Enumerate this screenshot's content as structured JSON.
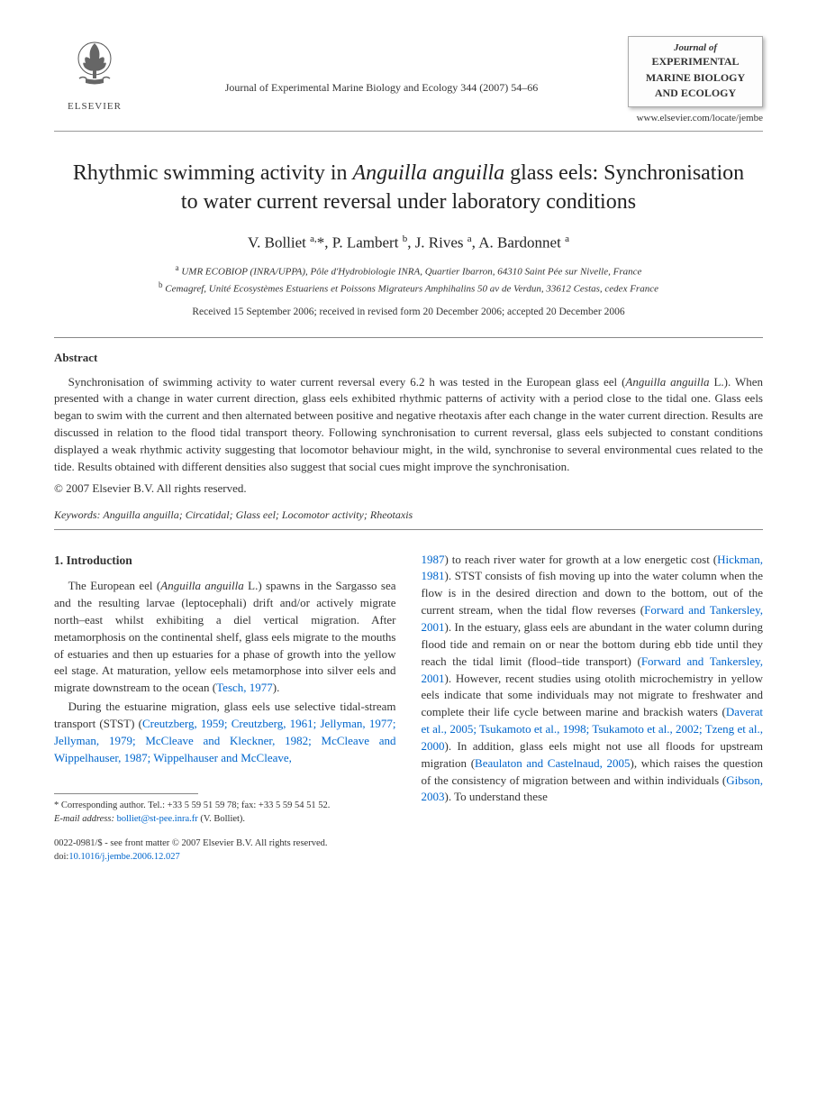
{
  "header": {
    "publisher": "ELSEVIER",
    "journal_ref": "Journal of Experimental Marine Biology and Ecology 344 (2007) 54–66",
    "journal_box": {
      "prefix": "Journal of",
      "line1": "EXPERIMENTAL",
      "line2": "MARINE BIOLOGY",
      "line3": "AND ECOLOGY"
    },
    "locate_url": "www.elsevier.com/locate/jembe"
  },
  "title": {
    "pre": "Rhythmic swimming activity in ",
    "italic": "Anguilla anguilla",
    "post": " glass eels: Synchronisation to water current reversal under laboratory conditions"
  },
  "authors_html": "V. Bolliet <sup>a,</sup>*, P. Lambert <sup>b</sup>, J. Rives <sup>a</sup>, A. Bardonnet <sup>a</sup>",
  "affiliations": {
    "a": "UMR ECOBIOP (INRA/UPPA), Pôle d'Hydrobiologie INRA, Quartier Ibarron, 64310 Saint Pée sur Nivelle, France",
    "b": "Cemagref, Unité Ecosystèmes Estuariens et Poissons Migrateurs Amphihalins 50 av de Verdun, 33612 Cestas, cedex France"
  },
  "dates": "Received 15 September 2006; received in revised form 20 December 2006; accepted 20 December 2006",
  "abstract": {
    "label": "Abstract",
    "body_pre": "Synchronisation of swimming activity to water current reversal every 6.2 h was tested in the European glass eel (",
    "body_italic": "Anguilla anguilla",
    "body_post": " L.). When presented with a change in water current direction, glass eels exhibited rhythmic patterns of activity with a period close to the tidal one. Glass eels began to swim with the current and then alternated between positive and negative rheotaxis after each change in the water current direction. Results are discussed in relation to the flood tidal transport theory. Following synchronisation to current reversal, glass eels subjected to constant conditions displayed a weak rhythmic activity suggesting that locomotor behaviour might, in the wild, synchronise to several environmental cues related to the tide. Results obtained with different densities also suggest that social cues might improve the synchronisation.",
    "copyright": "© 2007 Elsevier B.V. All rights reserved."
  },
  "keywords": {
    "label": "Keywords:",
    "value": "Anguilla anguilla; Circatidal; Glass eel; Locomotor activity; Rheotaxis"
  },
  "intro": {
    "heading": "1. Introduction",
    "p1_pre": "The European eel (",
    "p1_italic": "Anguilla anguilla",
    "p1_mid": " L.) spawns in the Sargasso sea and the resulting larvae (leptocephali) drift and/or actively migrate north–east whilst exhibiting a diel vertical migration. After metamorphosis on the continental shelf, glass eels migrate to the mouths of estuaries and then up estuaries for a phase of growth into the yellow eel stage. At maturation, yellow eels metamorphose into silver eels and migrate downstream to the ocean (",
    "p1_cite": "Tesch, 1977",
    "p1_end": ").",
    "p2_pre": "During the estuarine migration, glass eels use selective tidal-stream transport (STST) (",
    "p2_cite1": "Creutzberg, 1959; Creutzberg, 1961; Jellyman, 1977; Jellyman, 1979; McCleave and Kleckner, 1982; McCleave and Wippelhauser, 1987; Wippelhauser and McCleave,",
    "col2_cite_cont": "1987",
    "col2_a": ") to reach river water for growth at a low energetic cost (",
    "col2_cite_hickman": "Hickman, 1981",
    "col2_b": "). STST consists of fish moving up into the water column when the flow is in the desired direction and down to the bottom, out of the current stream, when the tidal flow reverses (",
    "col2_cite_ft1": "Forward and Tankersley, 2001",
    "col2_c": "). In the estuary, glass eels are abundant in the water column during flood tide and remain on or near the bottom during ebb tide until they reach the tidal limit (flood–tide transport) (",
    "col2_cite_ft2": "Forward and Tankersley, 2001",
    "col2_d": "). However, recent studies using otolith microchemistry in yellow eels indicate that some individuals may not migrate to freshwater and complete their life cycle between marine and brackish waters (",
    "col2_cite_dav": "Daverat et al., 2005; Tsukamoto et al., 1998; Tsukamoto et al., 2002; Tzeng et al., 2000",
    "col2_e": "). In addition, glass eels might not use all floods for upstream migration (",
    "col2_cite_beau": "Beaulaton and Castelnaud, 2005",
    "col2_f": "), which raises the question of the consistency of migration between and within individuals (",
    "col2_cite_gib": "Gibson, 2003",
    "col2_g": "). To understand these"
  },
  "corresponding": {
    "star": "* Corresponding author. Tel.: +33 5 59 51 59 78; fax: +33 5 59 54 51 52.",
    "email_label": "E-mail address:",
    "email": "bolliet@st-pee.inra.fr",
    "email_suffix": "(V. Bolliet)."
  },
  "footer": {
    "issn": "0022-0981/$ - see front matter © 2007 Elsevier B.V. All rights reserved.",
    "doi_label": "doi:",
    "doi": "10.1016/j.jembe.2006.12.027"
  },
  "colors": {
    "text": "#333333",
    "link": "#0066cc",
    "rule": "#888888",
    "background": "#ffffff"
  }
}
